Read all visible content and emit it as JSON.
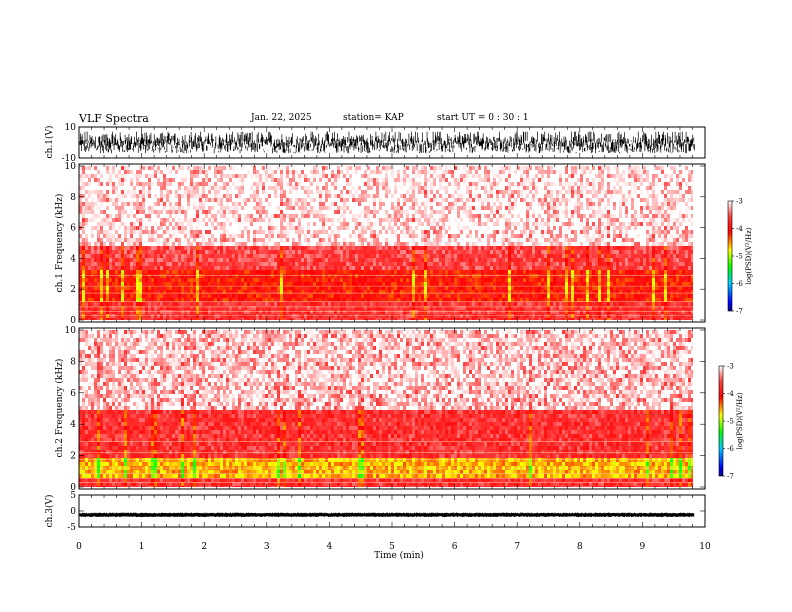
{
  "header": {
    "title": "VLF Spectra",
    "date": "Jan. 22, 2025",
    "station": "station= KAP",
    "start_ut": "start UT =  0 : 30 : 1"
  },
  "colors": {
    "low": "#0000ff",
    "mid": "#00ff00",
    "high_mid": "#ffff00",
    "high": "#ff0000",
    "top": "#ffffff",
    "trace": "#000000"
  },
  "chart_data": [
    {
      "type": "line",
      "name": "ch1-waveform",
      "ylabel": "ch.1(V)",
      "ylim": [
        -10,
        10
      ],
      "yticks": [
        "10",
        "-10"
      ],
      "xlim": [
        0,
        10
      ],
      "description_values": {
        "amplitude_range_V": [
          -7,
          7
        ]
      }
    },
    {
      "type": "heatmap",
      "name": "ch1-spectrogram",
      "ylabel": "ch.1 Frequency (kHz)",
      "ylim": [
        0,
        10
      ],
      "yticks": [
        "0",
        "2",
        "4",
        "6",
        "8",
        "10"
      ],
      "xlim": [
        0,
        9.83
      ],
      "colorbar": {
        "label": "log(PSD)(V²/Hz)",
        "range": [
          -7,
          -3
        ],
        "ticks": [
          "-3",
          "-4",
          "-5",
          "-6",
          "-7"
        ]
      },
      "bands_kHz": [
        {
          "from": 0,
          "to": 1.2,
          "level": -3.7
        },
        {
          "from": 1.2,
          "to": 3.4,
          "level": -4.1
        },
        {
          "from": 3.4,
          "to": 5,
          "level": -3.6
        },
        {
          "from": 5,
          "to": 10,
          "level": -3.3
        }
      ]
    },
    {
      "type": "heatmap",
      "name": "ch2-spectrogram",
      "ylabel": "ch.2 Frequency (kHz)",
      "ylim": [
        0,
        10
      ],
      "yticks": [
        "0",
        "2",
        "4",
        "6",
        "8",
        "10"
      ],
      "xlim": [
        0,
        9.83
      ],
      "colorbar": {
        "label": "log(PSD)(V²/Hz)",
        "range": [
          -7,
          -3
        ],
        "ticks": [
          "-3",
          "-4",
          "-5",
          "-6",
          "-7"
        ]
      },
      "bands_kHz": [
        {
          "from": 0,
          "to": 0.8,
          "level": -3.7
        },
        {
          "from": 0.8,
          "to": 2,
          "level": -4.6
        },
        {
          "from": 2,
          "to": 5,
          "level": -3.7
        },
        {
          "from": 5,
          "to": 10,
          "level": -3.4
        }
      ]
    },
    {
      "type": "line",
      "name": "ch3-waveform",
      "ylabel": "ch.3(V)",
      "ylim": [
        -5,
        5
      ],
      "yticks": [
        "5",
        "0",
        "-5"
      ],
      "xlim": [
        0,
        10
      ],
      "description_values": {
        "amplitude_range_V": [
          -1.6,
          -0.8
        ]
      }
    }
  ],
  "xaxis": {
    "label": "Time (min)",
    "ticks": [
      "0",
      "1",
      "2",
      "3",
      "4",
      "5",
      "6",
      "7",
      "8",
      "9",
      "10"
    ]
  }
}
